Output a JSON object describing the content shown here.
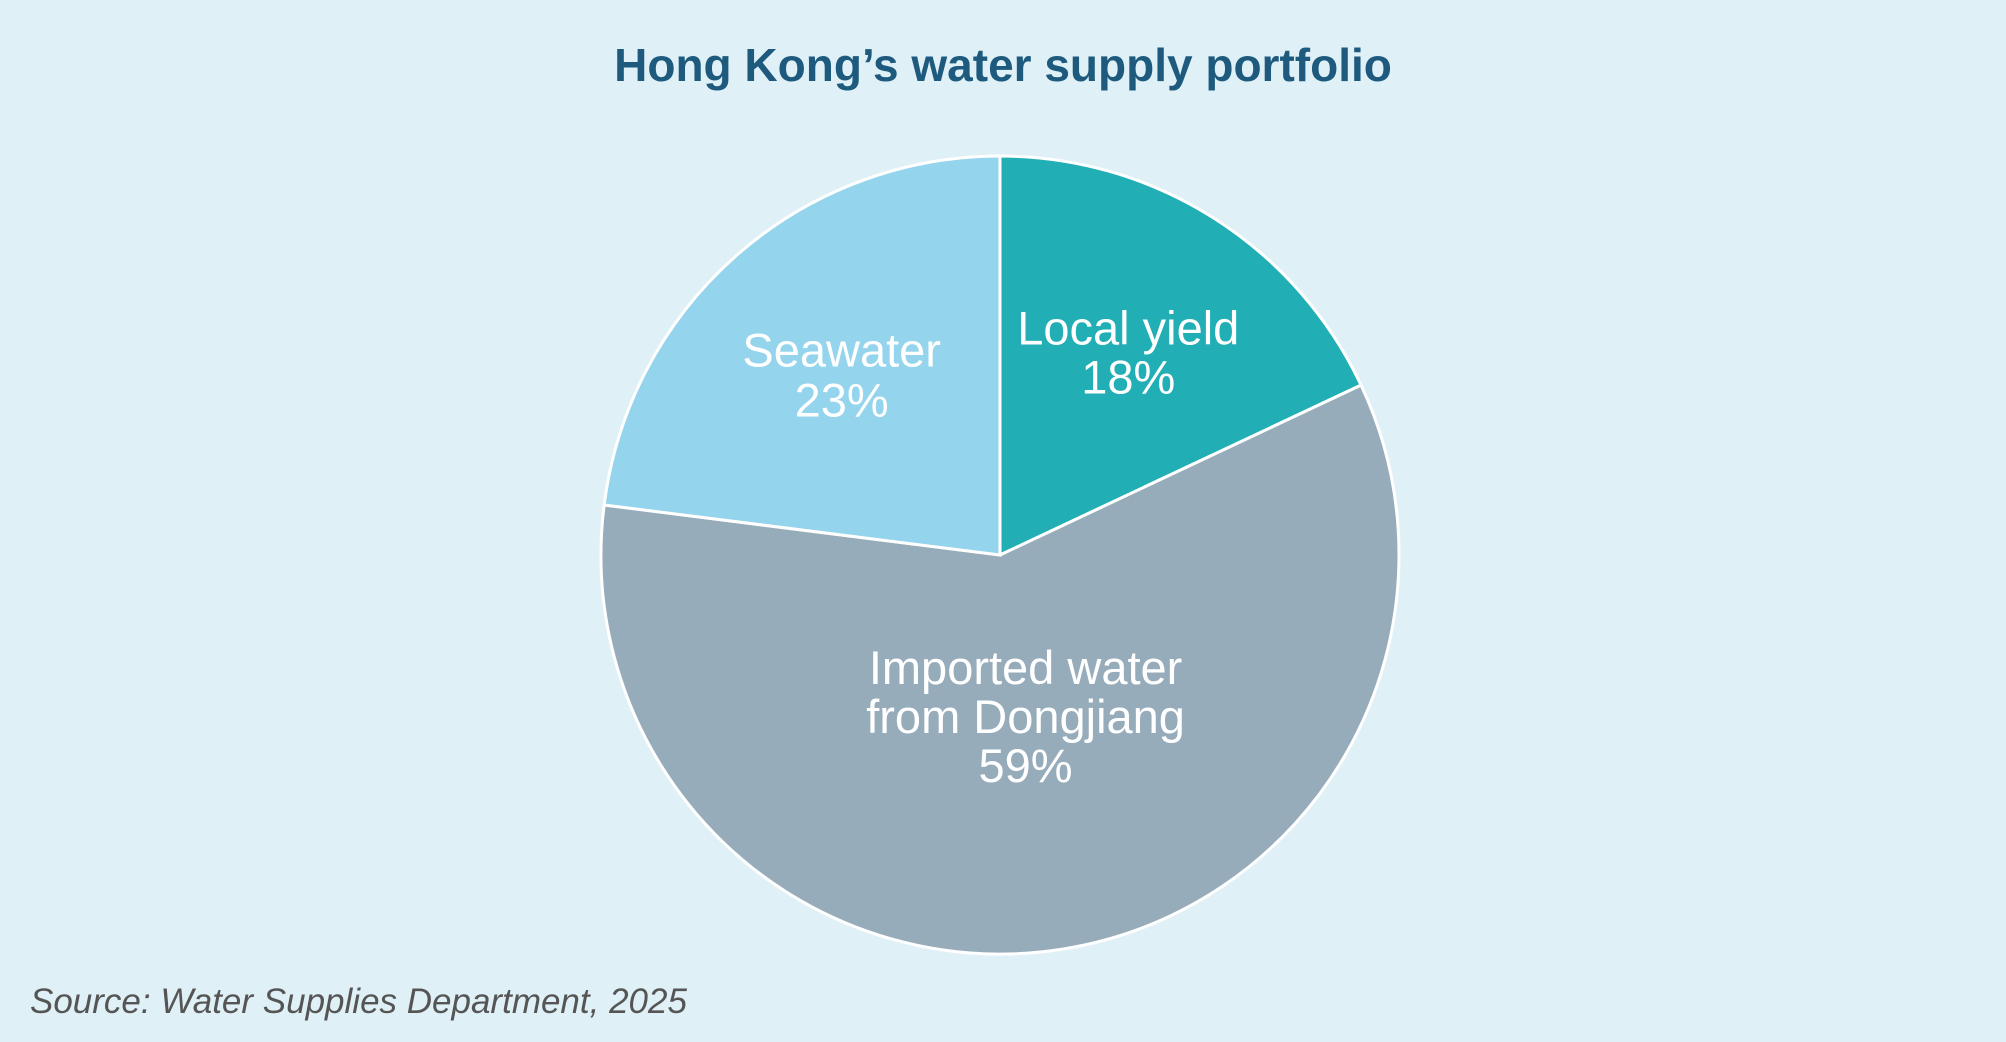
{
  "chart_data": {
    "type": "pie",
    "title": "Hong Kong’s water supply portfolio",
    "categories": [
      "Local yield",
      "Imported water from Dongjiang",
      "Seawater"
    ],
    "values": [
      18,
      59,
      23
    ],
    "value_labels": [
      "18%",
      "59%",
      "23%"
    ],
    "colors": [
      "#22aeb5",
      "#97acbb",
      "#94d4ec"
    ],
    "source": "Source: Water Supplies Department, 2025"
  }
}
